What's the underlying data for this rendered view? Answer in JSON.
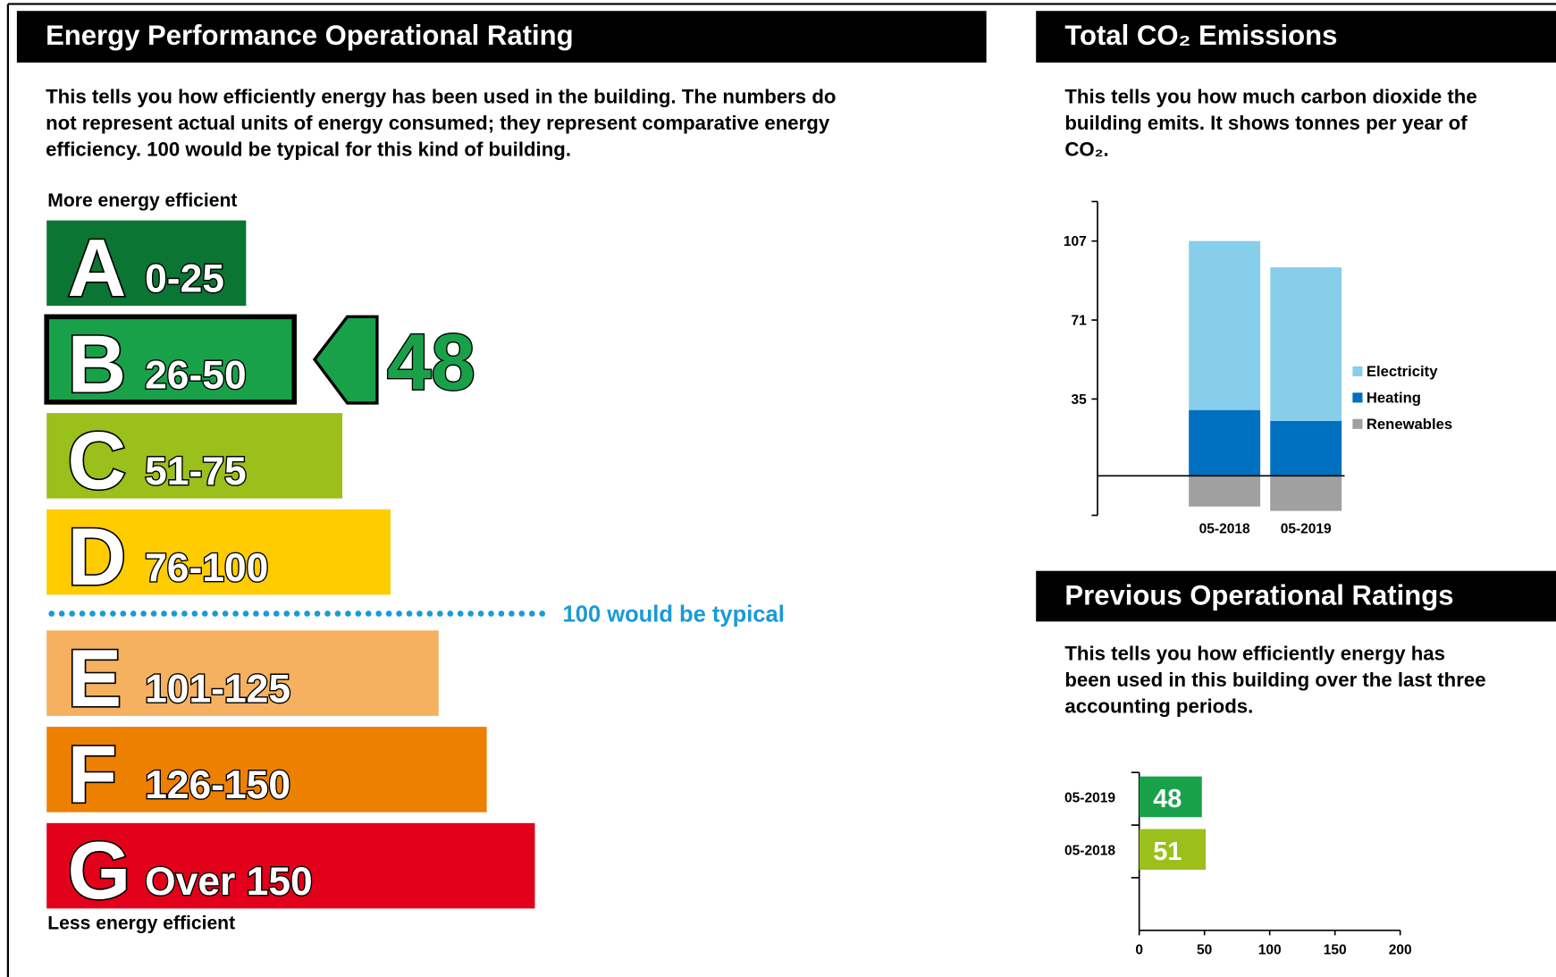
{
  "rating": {
    "title": "Energy Performance Operational Rating",
    "description": [
      "This tells you how efficiently energy has been used in the building. The numbers do",
      "not represent actual units of energy consumed; they represent comparative energy",
      "efficiency. 100 would be typical for this kind of building."
    ],
    "top_label": "More energy efficient",
    "bottom_label": "Less energy efficient",
    "bands": [
      {
        "letter": "A",
        "range": "0-25",
        "color": "#0b7533"
      },
      {
        "letter": "B",
        "range": "26-50",
        "color": "#19a14a"
      },
      {
        "letter": "C",
        "range": "51-75",
        "color": "#9bbf1b"
      },
      {
        "letter": "D",
        "range": "76-100",
        "color": "#ffcc00"
      },
      {
        "letter": "E",
        "range": "101-125",
        "color": "#f5b060"
      },
      {
        "letter": "F",
        "range": "126-150",
        "color": "#ee8000"
      },
      {
        "letter": "G",
        "range": "Over 150",
        "color": "#e2001a"
      }
    ],
    "current_value": 48,
    "typical_label": "100 would be typical",
    "typical_color": "#1a9ad6"
  },
  "co2": {
    "title": "Total CO₂ Emissions",
    "description": [
      "This tells you how much carbon dioxide the",
      "building emits. It shows tonnes per year of",
      "CO₂."
    ]
  },
  "previous": {
    "title": "Previous Operational Ratings",
    "description": [
      "This tells you how efficiently energy has",
      "been used in this building over the last three",
      "accounting periods."
    ]
  },
  "chart_data": [
    {
      "type": "stacked_bar",
      "categories": [
        "05-2018",
        "05-2019"
      ],
      "series": [
        {
          "name": "Electricity",
          "color": "#87ceeb",
          "values": [
            77,
            70
          ]
        },
        {
          "name": "Heating",
          "color": "#0070c0",
          "values": [
            30,
            25
          ]
        },
        {
          "name": "Renewables",
          "color": "#a0a0a0",
          "values": [
            -14,
            -16
          ]
        }
      ],
      "ylim": [
        -18,
        125
      ],
      "yticks": [
        35,
        71,
        107
      ]
    },
    {
      "type": "hbar",
      "categories": [
        "05-2019",
        "05-2018"
      ],
      "values": [
        48,
        51
      ],
      "colors": [
        "#19a14a",
        "#9bbf1b"
      ],
      "xlim": [
        0,
        200
      ],
      "xticks": [
        0,
        50,
        100,
        150,
        200
      ]
    }
  ]
}
